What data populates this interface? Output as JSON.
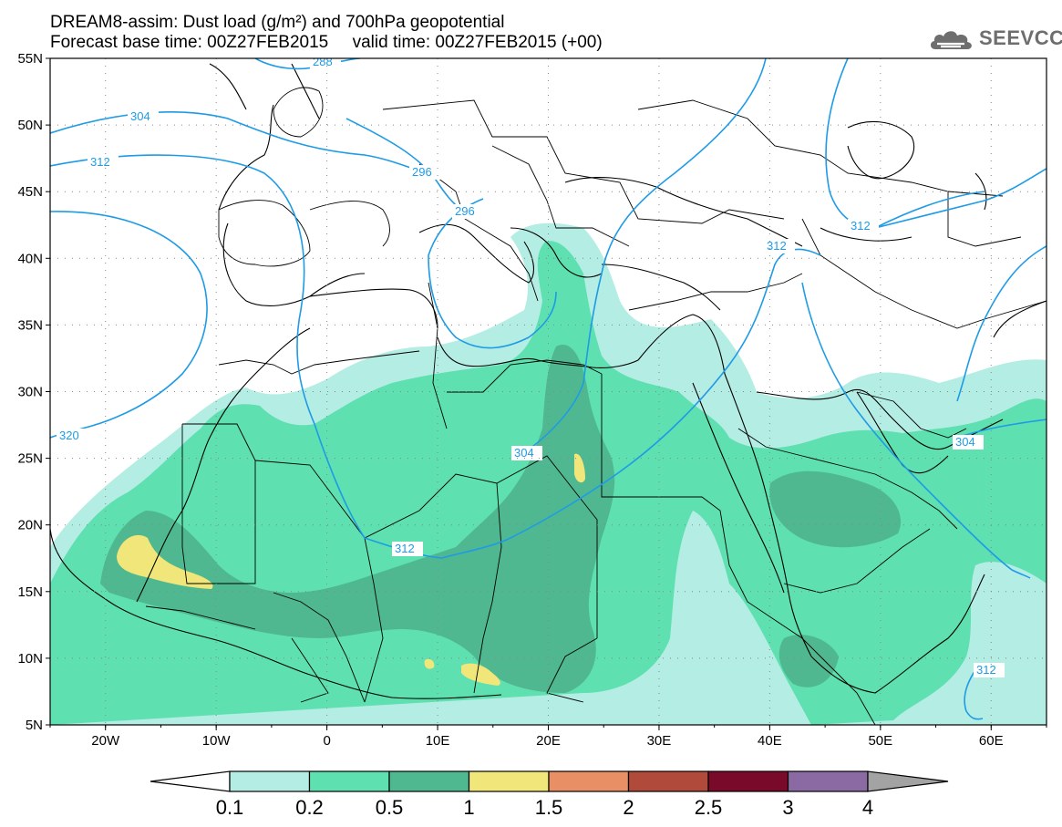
{
  "title": {
    "line1": "DREAM8-assim: Dust load (g/m²) and 700hPa geopotential",
    "line2": "Forecast base time: 00Z27FEB2015     valid time: 00Z27FEB2015 (+00)"
  },
  "logo": {
    "text": "SEEVCCC",
    "icon": "cloud-icon"
  },
  "axes": {
    "lat_labels": [
      "55N",
      "50N",
      "45N",
      "40N",
      "35N",
      "30N",
      "25N",
      "20N",
      "15N",
      "10N",
      "5N"
    ],
    "lon_labels": [
      "20W",
      "10W",
      "0",
      "10E",
      "20E",
      "30E",
      "40E",
      "50E",
      "60E"
    ],
    "lat_range": [
      5,
      55
    ],
    "lon_range": [
      -25,
      65
    ]
  },
  "contour_labels": [
    "288",
    "304",
    "312",
    "296",
    "296",
    "312",
    "312",
    "320",
    "304",
    "304",
    "312",
    "312"
  ],
  "colorbar": {
    "labels": [
      "0.1",
      "0.2",
      "0.5",
      "1",
      "1.5",
      "2",
      "2.5",
      "3",
      "4"
    ],
    "colors": [
      "#b4ede3",
      "#5ee0b0",
      "#50b890",
      "#f0e67a",
      "#e98f66",
      "#b04a3a",
      "#7a0a2a",
      "#8b6aa3"
    ],
    "under_color": "#ffffff",
    "over_color": "#a3a3a3"
  },
  "colors": {
    "contour": "#1e9be6",
    "border": "#000000"
  }
}
